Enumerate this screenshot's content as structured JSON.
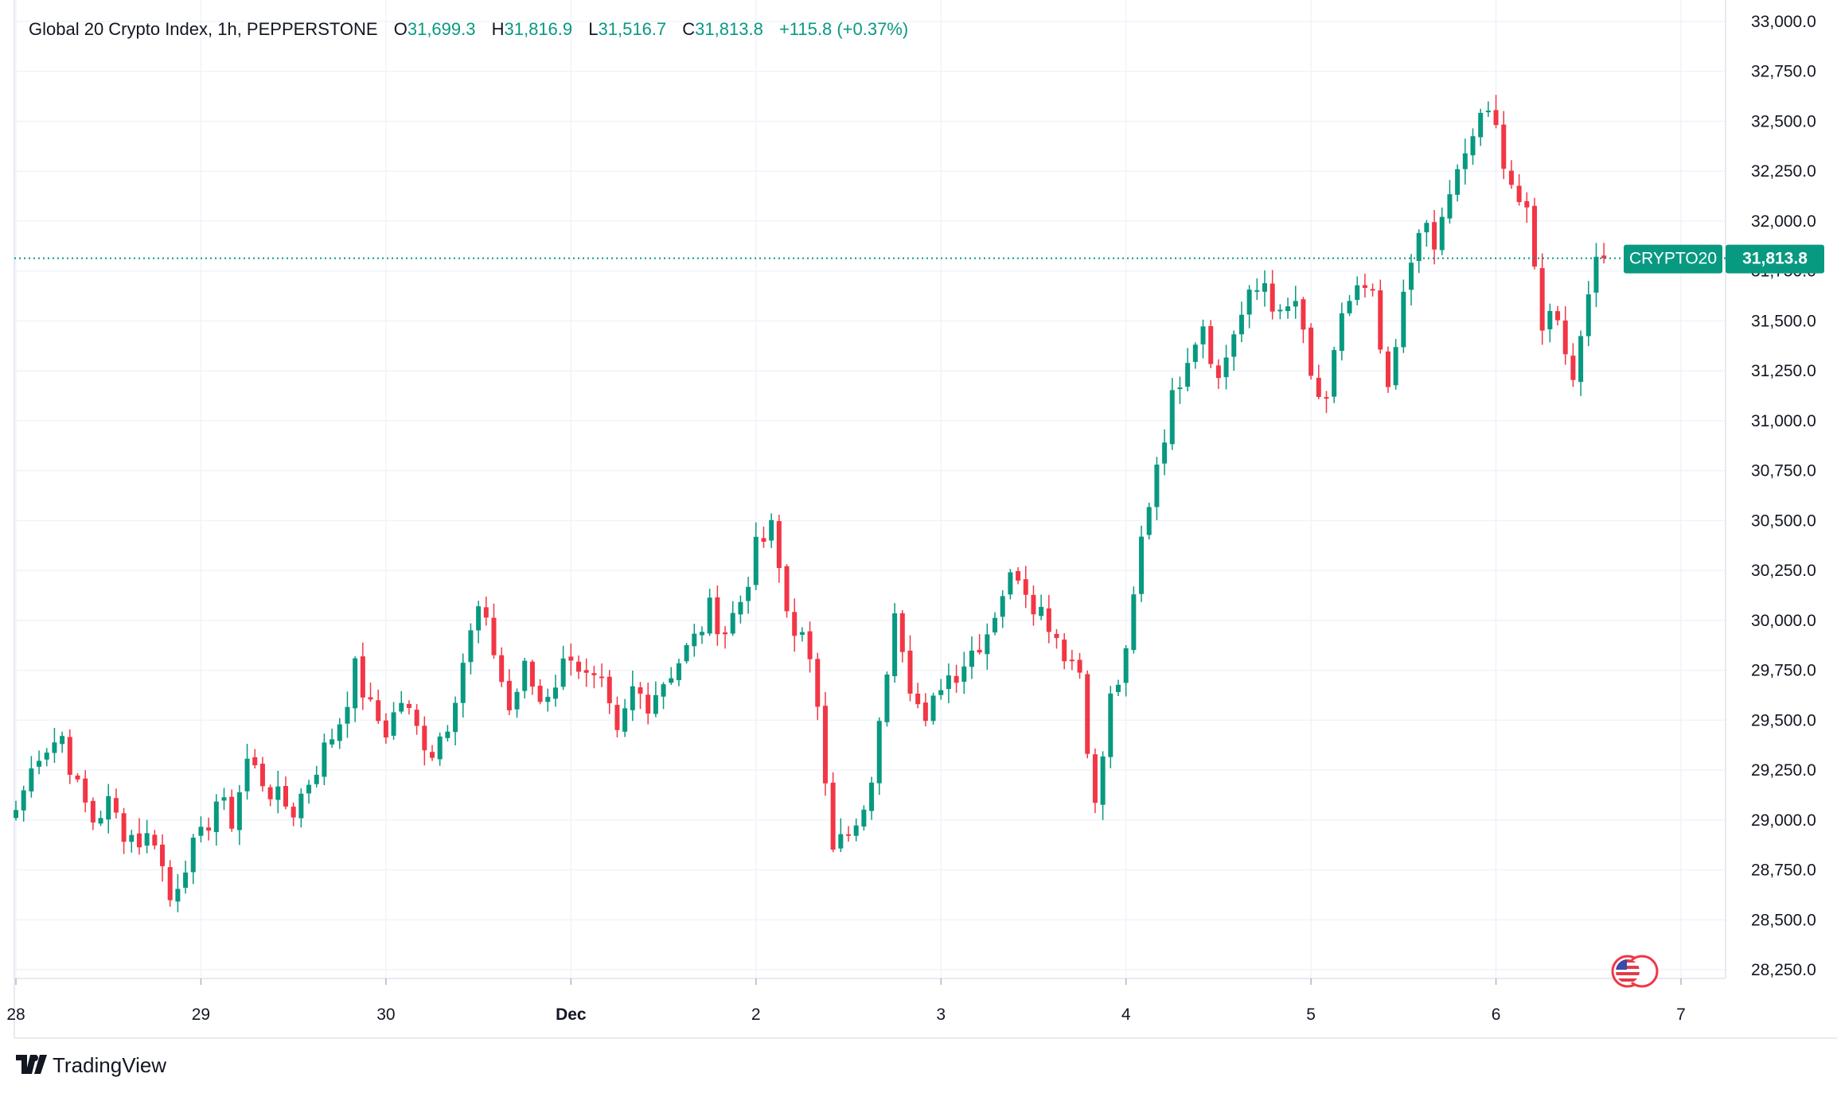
{
  "legend": {
    "symbol_title": "Global 20 Crypto Index, 1h, PEPPERSTONE",
    "open_label": "O",
    "open_value": "31,699.3",
    "high_label": "H",
    "high_value": "31,816.9",
    "low_label": "L",
    "low_value": "31,516.7",
    "close_label": "C",
    "close_value": "31,813.8",
    "change": "+115.8 (+0.37%)"
  },
  "price_tag": {
    "ticker": "CRYPTO20",
    "value": "31,813.8"
  },
  "branding": {
    "logo_text": "TradingView"
  },
  "colors": {
    "up": "#089981",
    "down": "#f23645",
    "grid": "#f0f3fa",
    "text": "#131722",
    "border": "#e0e3eb"
  },
  "chart_data": {
    "type": "candlestick",
    "y_axis": {
      "ylim": [
        28100,
        33000
      ],
      "ticks": [
        28250,
        28500,
        28750,
        29000,
        29250,
        29500,
        29750,
        30000,
        30250,
        30500,
        30750,
        31000,
        31250,
        31500,
        31750,
        32000,
        32250,
        32500,
        32750,
        33000
      ],
      "tick_labels": [
        "28,250.0",
        "28,500.0",
        "28,750.0",
        "29,000.0",
        "29,250.0",
        "29,500.0",
        "29,750.0",
        "30,000.0",
        "30,250.0",
        "30,500.0",
        "30,750.0",
        "31,000.0",
        "31,250.0",
        "31,500.0",
        "31,750.0",
        "32,000.0",
        "32,250.0",
        "32,500.0",
        "32,750.0",
        "33,000.0"
      ],
      "position": "right"
    },
    "x_axis": {
      "tick_labels": [
        {
          "label": "28",
          "hour": 0,
          "bold": false
        },
        {
          "label": "29",
          "hour": 24,
          "bold": false
        },
        {
          "label": "30",
          "hour": 48,
          "bold": false
        },
        {
          "label": "Dec",
          "hour": 72,
          "bold": true
        },
        {
          "label": "2",
          "hour": 96,
          "bold": false
        },
        {
          "label": "3",
          "hour": 120,
          "bold": false
        },
        {
          "label": "4",
          "hour": 144,
          "bold": false
        },
        {
          "label": "5",
          "hour": 168,
          "bold": false
        },
        {
          "label": "6",
          "hour": 192,
          "bold": false
        },
        {
          "label": "7",
          "hour": 216,
          "bold": false
        }
      ],
      "xlim_hours": [
        -0.5,
        233
      ]
    },
    "last_price": 31813.8,
    "grid": true,
    "candles_keyframes": [
      [
        0,
        29050
      ],
      [
        3,
        29350
      ],
      [
        6,
        29420
      ],
      [
        8,
        29150
      ],
      [
        10,
        29000
      ],
      [
        12,
        29080
      ],
      [
        14,
        28950
      ],
      [
        16,
        28900
      ],
      [
        18,
        28920
      ],
      [
        20,
        28600
      ],
      [
        22,
        28800
      ],
      [
        24,
        28900
      ],
      [
        26,
        29100
      ],
      [
        28,
        29000
      ],
      [
        30,
        29300
      ],
      [
        32,
        29200
      ],
      [
        34,
        29100
      ],
      [
        36,
        29050
      ],
      [
        38,
        29200
      ],
      [
        40,
        29350
      ],
      [
        42,
        29500
      ],
      [
        44,
        29750
      ],
      [
        46,
        29550
      ],
      [
        48,
        29450
      ],
      [
        50,
        29600
      ],
      [
        52,
        29450
      ],
      [
        54,
        29350
      ],
      [
        56,
        29500
      ],
      [
        58,
        29800
      ],
      [
        60,
        30050
      ],
      [
        62,
        29850
      ],
      [
        64,
        29550
      ],
      [
        66,
        29750
      ],
      [
        68,
        29600
      ],
      [
        70,
        29700
      ],
      [
        72,
        29850
      ],
      [
        74,
        29700
      ],
      [
        76,
        29650
      ],
      [
        78,
        29400
      ],
      [
        80,
        29650
      ],
      [
        82,
        29600
      ],
      [
        84,
        29700
      ],
      [
        86,
        29800
      ],
      [
        88,
        29900
      ],
      [
        90,
        30050
      ],
      [
        92,
        29950
      ],
      [
        94,
        30100
      ],
      [
        96,
        30350
      ],
      [
        98,
        30450
      ],
      [
        100,
        30050
      ],
      [
        102,
        29900
      ],
      [
        104,
        29600
      ],
      [
        106,
        28900
      ],
      [
        108,
        28900
      ],
      [
        110,
        29000
      ],
      [
        112,
        29450
      ],
      [
        114,
        30100
      ],
      [
        116,
        29700
      ],
      [
        118,
        29450
      ],
      [
        120,
        29700
      ],
      [
        122,
        29750
      ],
      [
        124,
        29850
      ],
      [
        126,
        29950
      ],
      [
        128,
        30150
      ],
      [
        130,
        30250
      ],
      [
        132,
        30100
      ],
      [
        134,
        30000
      ],
      [
        136,
        29850
      ],
      [
        138,
        29750
      ],
      [
        140,
        29050
      ],
      [
        142,
        29600
      ],
      [
        144,
        29800
      ],
      [
        146,
        30400
      ],
      [
        148,
        30800
      ],
      [
        150,
        31100
      ],
      [
        152,
        31350
      ],
      [
        154,
        31500
      ],
      [
        156,
        31200
      ],
      [
        158,
        31450
      ],
      [
        160,
        31600
      ],
      [
        162,
        31700
      ],
      [
        164,
        31500
      ],
      [
        166,
        31600
      ],
      [
        168,
        31200
      ],
      [
        170,
        31050
      ],
      [
        172,
        31550
      ],
      [
        174,
        31650
      ],
      [
        176,
        31600
      ],
      [
        178,
        31100
      ],
      [
        180,
        31600
      ],
      [
        182,
        32000
      ],
      [
        184,
        31850
      ],
      [
        186,
        32150
      ],
      [
        188,
        32300
      ],
      [
        190,
        32550
      ],
      [
        192,
        32450
      ],
      [
        194,
        32200
      ],
      [
        196,
        32000
      ],
      [
        198,
        31500
      ],
      [
        200,
        31550
      ],
      [
        202,
        31200
      ],
      [
        204,
        31700
      ],
      [
        206,
        31813.8
      ]
    ]
  }
}
